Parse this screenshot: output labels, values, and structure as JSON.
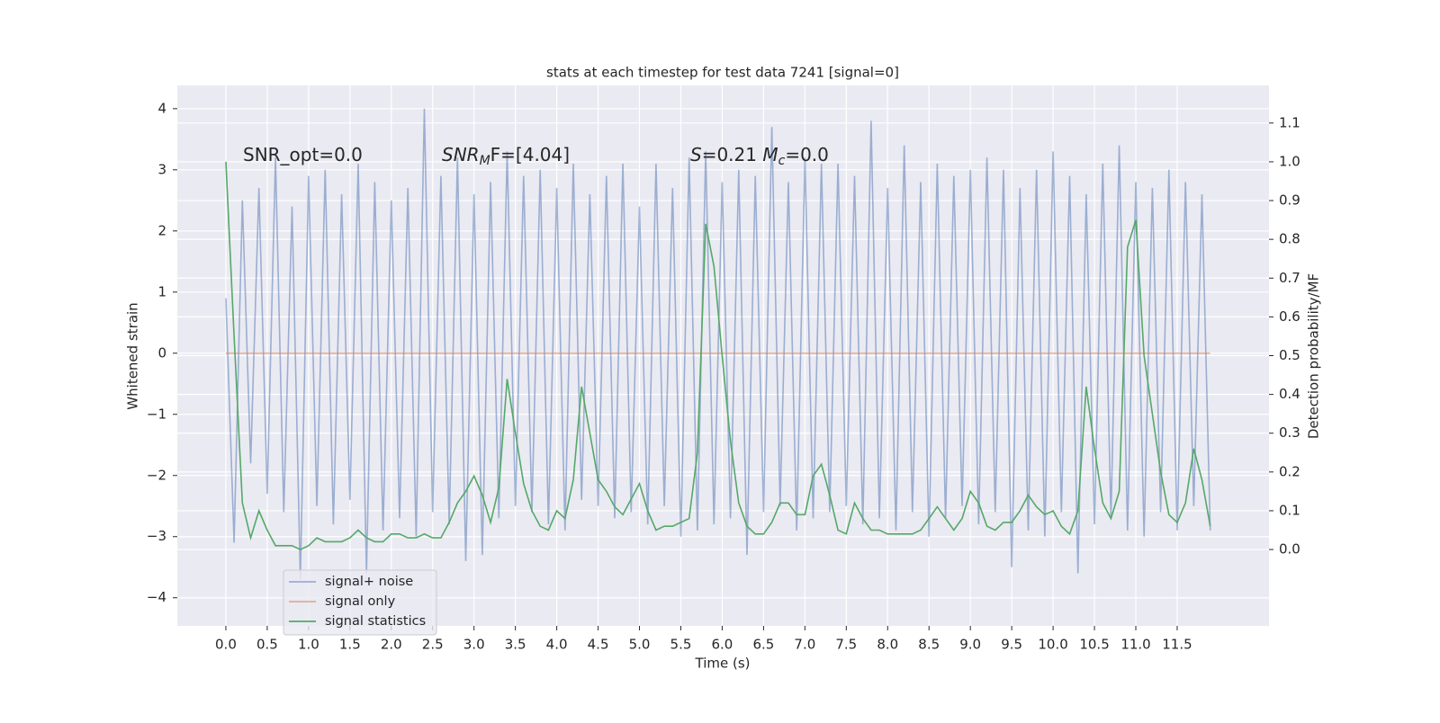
{
  "chart_data": {
    "type": "line",
    "title": "stats at each timestep for test data 7241 [signal=0]",
    "xlabel": "Time (s)",
    "ylabel": "Whitened strain",
    "y2label": "Detection probability/MF",
    "annotations": [
      [
        "SNR_opt=0.0"
      ],
      [
        "SNR",
        "M",
        "F=[4.04]"
      ],
      [
        "S",
        "=0.21   ",
        "M",
        "c",
        "=0.0"
      ]
    ],
    "x": [
      0.0,
      0.1,
      0.2,
      0.3,
      0.4,
      0.5,
      0.6,
      0.7,
      0.8,
      0.9,
      1.0,
      1.1,
      1.2,
      1.3,
      1.4,
      1.5,
      1.6,
      1.7,
      1.8,
      1.9,
      2.0,
      2.1,
      2.2,
      2.3,
      2.4,
      2.5,
      2.6,
      2.7,
      2.8,
      2.9,
      3.0,
      3.1,
      3.2,
      3.3,
      3.4,
      3.5,
      3.6,
      3.7,
      3.8,
      3.9,
      4.0,
      4.1,
      4.2,
      4.3,
      4.4,
      4.5,
      4.6,
      4.7,
      4.8,
      4.9,
      5.0,
      5.1,
      5.2,
      5.3,
      5.4,
      5.5,
      5.6,
      5.7,
      5.8,
      5.9,
      6.0,
      6.1,
      6.2,
      6.3,
      6.4,
      6.5,
      6.6,
      6.7,
      6.8,
      6.9,
      7.0,
      7.1,
      7.2,
      7.3,
      7.4,
      7.5,
      7.6,
      7.7,
      7.8,
      7.9,
      8.0,
      8.1,
      8.2,
      8.3,
      8.4,
      8.5,
      8.6,
      8.7,
      8.8,
      8.9,
      9.0,
      9.1,
      9.2,
      9.3,
      9.4,
      9.5,
      9.6,
      9.7,
      9.8,
      9.9,
      10.0,
      10.1,
      10.2,
      10.3,
      10.4,
      10.5,
      10.6,
      10.7,
      10.8,
      10.9,
      11.0,
      11.1,
      11.2,
      11.3,
      11.4,
      11.5,
      11.6,
      11.7,
      11.8,
      11.9
    ],
    "series": [
      {
        "name": "signal+ noise",
        "color": "#4c72b0",
        "opacity": 0.5,
        "axis": "y",
        "values": [
          0.9,
          -3.1,
          2.5,
          -1.8,
          2.7,
          -2.3,
          3.2,
          -2.6,
          2.4,
          -3.7,
          2.9,
          -2.5,
          3.0,
          -2.8,
          2.6,
          -2.4,
          3.1,
          -3.6,
          2.8,
          -2.9,
          2.5,
          -2.7,
          2.7,
          -3.0,
          4.0,
          -2.6,
          2.9,
          -2.8,
          3.2,
          -3.4,
          2.6,
          -3.3,
          2.8,
          -2.7,
          3.3,
          -2.5,
          2.9,
          -2.6,
          3.0,
          -2.8,
          2.7,
          -2.9,
          3.1,
          -2.4,
          2.6,
          -2.5,
          2.9,
          -2.7,
          3.1,
          -2.6,
          2.4,
          -2.8,
          3.1,
          -2.5,
          2.7,
          -3.0,
          3.2,
          -2.9,
          3.3,
          -2.8,
          2.8,
          -2.7,
          3.0,
          -3.3,
          2.9,
          -2.6,
          3.7,
          -2.5,
          2.8,
          -2.9,
          3.2,
          -2.7,
          3.1,
          -2.6,
          3.1,
          -2.5,
          2.9,
          -2.8,
          3.8,
          -2.7,
          2.7,
          -2.9,
          3.4,
          -2.6,
          2.8,
          -3.0,
          3.1,
          -2.7,
          2.9,
          -2.5,
          3.0,
          -2.8,
          3.2,
          -2.6,
          3.0,
          -3.5,
          2.7,
          -2.9,
          3.0,
          -3.0,
          3.3,
          -2.6,
          2.9,
          -3.6,
          2.6,
          -2.8,
          3.1,
          -2.7,
          3.4,
          -2.9,
          2.8,
          -3.0,
          2.7,
          -2.6,
          3.0,
          -2.9,
          2.8,
          -2.5,
          2.6,
          -2.9
        ]
      },
      {
        "name": "signal only",
        "color": "#dd8452",
        "opacity": 0.6,
        "axis": "y",
        "values": [
          0,
          0,
          0,
          0,
          0,
          0,
          0,
          0,
          0,
          0,
          0,
          0,
          0,
          0,
          0,
          0,
          0,
          0,
          0,
          0,
          0,
          0,
          0,
          0,
          0,
          0,
          0,
          0,
          0,
          0,
          0,
          0,
          0,
          0,
          0,
          0,
          0,
          0,
          0,
          0,
          0,
          0,
          0,
          0,
          0,
          0,
          0,
          0,
          0,
          0,
          0,
          0,
          0,
          0,
          0,
          0,
          0,
          0,
          0,
          0,
          0,
          0,
          0,
          0,
          0,
          0,
          0,
          0,
          0,
          0,
          0,
          0,
          0,
          0,
          0,
          0,
          0,
          0,
          0,
          0,
          0,
          0,
          0,
          0,
          0,
          0,
          0,
          0,
          0,
          0,
          0,
          0,
          0,
          0,
          0,
          0,
          0,
          0,
          0,
          0,
          0,
          0,
          0,
          0,
          0,
          0,
          0,
          0,
          0,
          0,
          0,
          0,
          0,
          0,
          0,
          0,
          0,
          0,
          0,
          0
        ]
      },
      {
        "name": "signal statistics",
        "color": "#55a868",
        "opacity": 1,
        "axis": "y2",
        "values": [
          1.0,
          0.55,
          0.12,
          0.03,
          0.1,
          0.05,
          0.01,
          0.01,
          0.01,
          0.0,
          0.01,
          0.03,
          0.02,
          0.02,
          0.02,
          0.03,
          0.05,
          0.03,
          0.02,
          0.02,
          0.04,
          0.04,
          0.03,
          0.03,
          0.04,
          0.03,
          0.03,
          0.07,
          0.12,
          0.15,
          0.19,
          0.14,
          0.07,
          0.16,
          0.44,
          0.3,
          0.17,
          0.1,
          0.06,
          0.05,
          0.1,
          0.08,
          0.18,
          0.42,
          0.3,
          0.18,
          0.15,
          0.11,
          0.09,
          0.13,
          0.17,
          0.1,
          0.05,
          0.06,
          0.06,
          0.07,
          0.08,
          0.25,
          0.84,
          0.73,
          0.5,
          0.28,
          0.12,
          0.06,
          0.04,
          0.04,
          0.07,
          0.12,
          0.12,
          0.09,
          0.09,
          0.19,
          0.22,
          0.14,
          0.05,
          0.04,
          0.12,
          0.08,
          0.05,
          0.05,
          0.04,
          0.04,
          0.04,
          0.04,
          0.05,
          0.08,
          0.11,
          0.08,
          0.05,
          0.08,
          0.15,
          0.12,
          0.06,
          0.05,
          0.07,
          0.07,
          0.1,
          0.14,
          0.11,
          0.09,
          0.1,
          0.06,
          0.04,
          0.1,
          0.42,
          0.26,
          0.12,
          0.08,
          0.15,
          0.78,
          0.85,
          0.5,
          0.35,
          0.2,
          0.09,
          0.07,
          0.12,
          0.26,
          0.18,
          0.06
        ]
      }
    ],
    "xlim": [
      -0.587,
      12.61
    ],
    "ylim": [
      -4.46,
      4.38
    ],
    "y2lim": [
      -0.197,
      1.197
    ],
    "xticks": [
      {
        "value": 0,
        "label": "0.0"
      },
      0.5,
      {
        "value": 1,
        "label": "1.0"
      },
      1.5,
      {
        "value": 2,
        "label": "2.0"
      },
      2.5,
      {
        "value": 3,
        "label": "3.0"
      },
      3.5,
      {
        "value": 4,
        "label": "4.0"
      },
      4.5,
      {
        "value": 5,
        "label": "5.0"
      },
      5.5,
      {
        "value": 6,
        "label": "6.0"
      },
      6.5,
      {
        "value": 7,
        "label": "7.0"
      },
      7.5,
      {
        "value": 8,
        "label": "8.0"
      },
      8.5,
      {
        "value": 9,
        "label": "9.0"
      },
      9.5,
      {
        "value": 10,
        "label": "10.0"
      },
      10.5,
      {
        "value": 11,
        "label": "11.0"
      },
      11.5
    ],
    "yticks": [
      {
        "value": -4,
        "label": "−4"
      },
      {
        "value": -3,
        "label": "−3"
      },
      {
        "value": -2,
        "label": "−2"
      },
      {
        "value": -1,
        "label": "−1"
      },
      0,
      1,
      2,
      3,
      4
    ],
    "y2ticks": [
      {
        "value": 0,
        "label": "0.0"
      },
      0.1,
      0.2,
      0.3,
      0.4,
      0.5,
      0.6,
      0.7,
      0.8,
      0.9,
      {
        "value": 1,
        "label": "1.0"
      },
      1.1
    ],
    "grid": true,
    "legend": "lower left"
  }
}
